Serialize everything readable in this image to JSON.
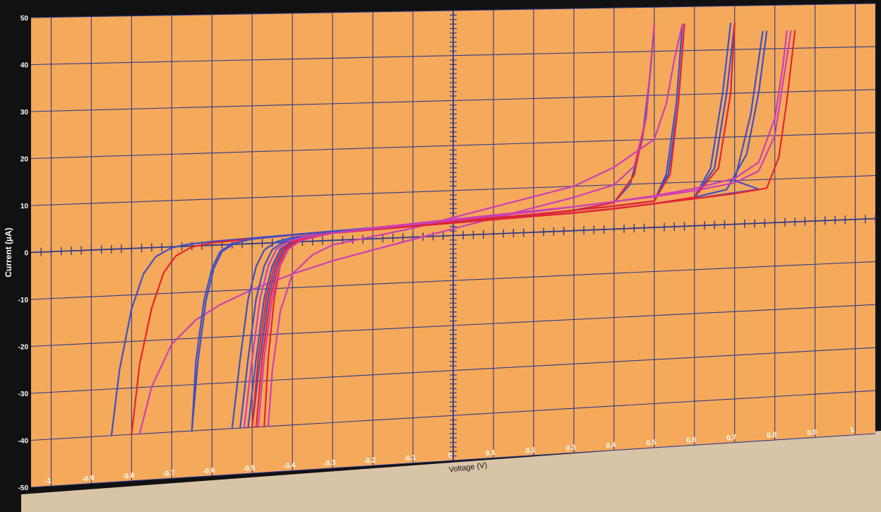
{
  "chart_data": {
    "type": "line",
    "title": "",
    "xlabel": "Voltage (V)",
    "ylabel": "Current (µA)",
    "xlim": [
      -1.05,
      1.05
    ],
    "ylim": [
      -50,
      50
    ],
    "x_ticks": [
      -1,
      -0.9,
      -0.8,
      -0.7,
      -0.6,
      -0.5,
      -0.4,
      -0.3,
      -0.2,
      -0.1,
      0,
      0.1,
      0.2,
      0.3,
      0.4,
      0.5,
      0.6,
      0.7,
      0.8,
      0.9,
      1
    ],
    "x_tick_labels": [
      "-1",
      "-0.9",
      "-0.8",
      "-0.7",
      "-0.6",
      "-0.5",
      "-0.4",
      "-0.3",
      "-0.2",
      "-0.1",
      "0",
      "0.1",
      "0.2",
      "0.3",
      "0.4",
      "0.5",
      "0.6",
      "0.7",
      "0.8",
      "0.9",
      "1"
    ],
    "y_ticks": [
      -50,
      -40,
      -30,
      -20,
      -10,
      0,
      10,
      20,
      30,
      40,
      50
    ],
    "y_tick_labels": [
      "-50",
      "-40",
      "-30",
      "-20",
      "-10",
      "0",
      "10",
      "20",
      "30",
      "40",
      "50"
    ],
    "grid": true,
    "legend": "none",
    "colors": {
      "plot_background": "#F5A95A",
      "grid": "#2E3A8C",
      "frame": "#111111",
      "blue": "#3F4FC4",
      "red": "#E8232E",
      "magenta": "#CC3FB5"
    },
    "series": [
      {
        "color": "#3F4FC4",
        "x": [
          -0.85,
          -0.83,
          -0.8,
          -0.77,
          -0.74,
          -0.7,
          -0.66,
          -0.6,
          -0.5,
          -0.4,
          -0.3,
          -0.2,
          -0.1,
          0.0,
          0.1,
          0.2,
          0.3,
          0.4,
          0.44,
          0.47,
          0.49,
          0.5
        ],
        "y": [
          -40,
          -26,
          -13,
          -5.5,
          -2,
          -0.2,
          0.4,
          0.8,
          1.2,
          1.6,
          2.0,
          2.4,
          2.8,
          3.2,
          3.6,
          4.0,
          4.6,
          6,
          10,
          20,
          35,
          46
        ]
      },
      {
        "color": "#E8232E",
        "x": [
          -0.8,
          -0.78,
          -0.75,
          -0.72,
          -0.69,
          -0.65,
          -0.6,
          -0.5,
          -0.4,
          -0.3,
          -0.2,
          -0.1,
          0.0,
          0.1,
          0.2,
          0.3,
          0.4,
          0.45,
          0.48,
          0.5
        ],
        "y": [
          -40,
          -25,
          -13,
          -5.5,
          -2,
          -0.2,
          0.5,
          1.0,
          1.5,
          1.9,
          2.3,
          2.7,
          3.1,
          3.5,
          3.9,
          4.5,
          6,
          12,
          25,
          46
        ]
      },
      {
        "color": "#CC3FB5",
        "x": [
          -0.78,
          -0.75,
          -0.7,
          -0.64,
          -0.58,
          -0.5,
          -0.4,
          -0.3,
          -0.2,
          -0.1,
          0.0,
          0.1,
          0.2,
          0.3,
          0.4,
          0.45,
          0.48,
          0.5
        ],
        "y": [
          -40,
          -30,
          -21,
          -16,
          -13,
          -10,
          -7,
          -4.5,
          -2.5,
          -0.5,
          1.5,
          3.5,
          5.5,
          7.5,
          10,
          14,
          25,
          46
        ]
      },
      {
        "color": "#3F4FC4",
        "x": [
          -0.65,
          -0.64,
          -0.62,
          -0.6,
          -0.58,
          -0.55,
          -0.5,
          -0.4,
          -0.3,
          -0.2,
          -0.1,
          0.0,
          0.1,
          0.2,
          0.3,
          0.4,
          0.5,
          0.53,
          0.555,
          0.57
        ],
        "y": [
          -40,
          -25,
          -12,
          -5,
          -1.5,
          0.2,
          1.0,
          1.6,
          2.0,
          2.4,
          2.8,
          3.2,
          3.6,
          4.0,
          4.6,
          5.2,
          6,
          12,
          28,
          46
        ]
      },
      {
        "color": "#3F4FC4",
        "x": [
          -0.65,
          -0.635,
          -0.615,
          -0.595,
          -0.575,
          -0.545,
          -0.5,
          -0.4,
          -0.3,
          -0.2,
          -0.1,
          0.0,
          0.1,
          0.2,
          0.3,
          0.4,
          0.5,
          0.535,
          0.56,
          0.575
        ],
        "y": [
          -40,
          -25,
          -12,
          -5,
          -1.5,
          0.2,
          1.0,
          1.6,
          2.0,
          2.4,
          2.8,
          3.2,
          3.6,
          4.0,
          4.6,
          5.2,
          6,
          12,
          28,
          46
        ]
      },
      {
        "color": "#E8232E",
        "x": [
          -0.47,
          -0.46,
          -0.445,
          -0.43,
          -0.41,
          -0.38,
          -0.3,
          -0.2,
          -0.1,
          0.0,
          0.1,
          0.2,
          0.3,
          0.4,
          0.5,
          0.54,
          0.56,
          0.575
        ],
        "y": [
          -40,
          -25,
          -12,
          -5,
          -1.5,
          0.3,
          1.6,
          2.2,
          2.8,
          3.2,
          3.6,
          4.0,
          4.6,
          5.2,
          6,
          12,
          28,
          46
        ]
      },
      {
        "color": "#CC3FB5",
        "x": [
          -0.46,
          -0.45,
          -0.43,
          -0.4,
          -0.35,
          -0.3,
          -0.2,
          -0.1,
          0.0,
          0.1,
          0.2,
          0.3,
          0.4,
          0.45,
          0.5,
          0.53,
          0.55,
          0.57
        ],
        "y": [
          -40,
          -28,
          -15,
          -7,
          -3,
          -1,
          0.5,
          2,
          4,
          6,
          8,
          10,
          14,
          17,
          20,
          28,
          38,
          46
        ]
      },
      {
        "color": "#3F4FC4",
        "x": [
          -0.55,
          -0.53,
          -0.51,
          -0.49,
          -0.47,
          -0.44,
          -0.4,
          -0.3,
          -0.2,
          -0.1,
          0.0,
          0.1,
          0.2,
          0.3,
          0.4,
          0.5,
          0.6,
          0.64,
          0.67,
          0.69
        ],
        "y": [
          -40,
          -25,
          -12,
          -5,
          -1.5,
          0.2,
          1.0,
          1.6,
          2.0,
          2.4,
          2.8,
          3.2,
          3.6,
          4.0,
          4.6,
          5.4,
          6.5,
          13,
          30,
          46
        ]
      },
      {
        "color": "#3F4FC4",
        "x": [
          -0.53,
          -0.51,
          -0.49,
          -0.47,
          -0.45,
          -0.42,
          -0.38,
          -0.3,
          -0.2,
          -0.1,
          0.0,
          0.1,
          0.2,
          0.3,
          0.4,
          0.5,
          0.6,
          0.65,
          0.68,
          0.7
        ],
        "y": [
          -40,
          -25,
          -12,
          -5,
          -1.5,
          0.2,
          1.0,
          1.6,
          2.0,
          2.4,
          2.8,
          3.2,
          3.6,
          4.0,
          4.6,
          5.4,
          6.5,
          13,
          30,
          46
        ]
      },
      {
        "color": "#3F4FC4",
        "x": [
          -0.51,
          -0.49,
          -0.47,
          -0.45,
          -0.43,
          -0.4,
          -0.36,
          -0.3,
          -0.2,
          -0.1,
          0.0,
          0.1,
          0.2,
          0.3,
          0.4,
          0.5,
          0.6,
          0.7,
          0.76,
          0.7,
          0.74,
          0.77
        ],
        "y": [
          -40,
          -25,
          -12,
          -5,
          -1.5,
          0.2,
          1.0,
          1.6,
          2.0,
          2.4,
          2.8,
          3.2,
          3.6,
          4.0,
          4.6,
          5.4,
          6.2,
          7.2,
          7.8,
          10,
          25,
          44
        ]
      },
      {
        "color": "#3F4FC4",
        "x": [
          -0.5,
          -0.48,
          -0.46,
          -0.44,
          -0.42,
          -0.39,
          -0.35,
          -0.3,
          -0.2,
          -0.1,
          0.0,
          0.1,
          0.2,
          0.3,
          0.4,
          0.5,
          0.6,
          0.68,
          0.73,
          0.76,
          0.78
        ],
        "y": [
          -40,
          -25,
          -12,
          -5,
          -1.5,
          0.2,
          1.0,
          1.6,
          2.0,
          2.4,
          2.8,
          3.2,
          3.6,
          4.0,
          4.6,
          5.4,
          6.5,
          8,
          16,
          30,
          44
        ]
      },
      {
        "color": "#E8232E",
        "x": [
          -0.49,
          -0.475,
          -0.455,
          -0.435,
          -0.415,
          -0.385,
          -0.35,
          -0.3,
          -0.2,
          -0.1,
          0.0,
          0.1,
          0.2,
          0.3,
          0.4,
          0.5,
          0.6,
          0.7,
          0.78,
          0.81,
          0.83,
          0.85
        ],
        "y": [
          -40,
          -25,
          -12,
          -5,
          -1.5,
          0.2,
          1.0,
          1.6,
          2.0,
          2.4,
          2.8,
          3.2,
          3.6,
          4.0,
          4.6,
          5.4,
          6.2,
          7,
          8,
          15,
          28,
          44
        ]
      },
      {
        "color": "#CC3FB5",
        "x": [
          -0.485,
          -0.47,
          -0.45,
          -0.43,
          -0.41,
          -0.38,
          -0.34,
          -0.3,
          -0.2,
          -0.1,
          0.0,
          0.1,
          0.2,
          0.3,
          0.4,
          0.5,
          0.6,
          0.7,
          0.76,
          0.8,
          0.82,
          0.84
        ],
        "y": [
          -40,
          -25,
          -12,
          -5,
          -1.5,
          0.2,
          1.0,
          1.6,
          2.4,
          3.0,
          3.6,
          4.2,
          4.8,
          5.4,
          6.2,
          7,
          8,
          9.5,
          12,
          20,
          32,
          44
        ]
      },
      {
        "color": "#E8232E",
        "x": [
          -0.5,
          -0.485,
          -0.465,
          -0.445,
          -0.425,
          -0.395,
          -0.36,
          -0.3,
          -0.2,
          -0.1,
          0.0,
          0.1,
          0.2,
          0.3,
          0.4,
          0.5,
          0.6,
          0.66,
          0.69,
          0.7
        ],
        "y": [
          -40,
          -25,
          -12,
          -5,
          -1.5,
          0.2,
          1.0,
          1.6,
          2.0,
          2.4,
          2.8,
          3.2,
          3.6,
          4.0,
          4.6,
          5.4,
          6.5,
          13,
          30,
          46
        ]
      },
      {
        "color": "#CC3FB5",
        "x": [
          -0.52,
          -0.5,
          -0.48,
          -0.46,
          -0.44,
          -0.41,
          -0.37,
          -0.3,
          -0.2,
          -0.1,
          0.0,
          0.1,
          0.2,
          0.3,
          0.4,
          0.5,
          0.6,
          0.7,
          0.76,
          0.8,
          0.82,
          0.83
        ],
        "y": [
          -40,
          -25,
          -12,
          -5,
          -1.5,
          0.2,
          1.0,
          1.6,
          2.2,
          2.8,
          3.4,
          4.0,
          4.6,
          5.4,
          6.2,
          7.2,
          8.5,
          10.5,
          14,
          24,
          36,
          44
        ]
      }
    ]
  }
}
